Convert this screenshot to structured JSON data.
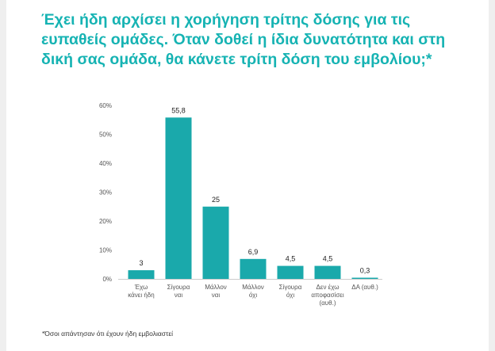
{
  "title_lines": [
    "Έχει ήδη αρχίσει η χορήγηση τρίτης δόσης για τις",
    "ευπαθείς ομάδες. Όταν δοθεί η ίδια δυνατότητα και στη",
    "δική σας ομάδα, θα κάνετε τρίτη δόση του εμβολίου;*"
  ],
  "footnote": "*Όσοι απάντησαν ότι έχουν ήδη εμβολιαστεί",
  "colors": {
    "accent": "#16b3b3",
    "bar": "#1aa9ab",
    "axis_text": "#555555",
    "frame": "#efefef"
  },
  "chart_data": {
    "type": "bar",
    "categories": [
      [
        "Έχω",
        "κάνει ήδη"
      ],
      [
        "Σίγουρα",
        "ναι"
      ],
      [
        "Μάλλον",
        "ναι"
      ],
      [
        "Μάλλον",
        "όχι"
      ],
      [
        "Σίγουρα",
        "όχι"
      ],
      [
        "Δεν έχω",
        "αποφασίσει",
        "(αυθ.)"
      ],
      [
        "ΔΑ (αυθ.)"
      ]
    ],
    "values": [
      3,
      55.8,
      25,
      6.9,
      4.5,
      4.5,
      0.3
    ],
    "value_labels": [
      "3",
      "55,8",
      "25",
      "6,9",
      "4,5",
      "4,5",
      "0,3"
    ],
    "yticks": [
      0,
      10,
      20,
      30,
      40,
      50,
      60
    ],
    "ytick_labels": [
      "0%",
      "10%",
      "20%",
      "30%",
      "40%",
      "50%",
      "60%"
    ],
    "ylim": [
      0,
      60
    ],
    "grid": false,
    "xlabel": "",
    "ylabel": ""
  }
}
